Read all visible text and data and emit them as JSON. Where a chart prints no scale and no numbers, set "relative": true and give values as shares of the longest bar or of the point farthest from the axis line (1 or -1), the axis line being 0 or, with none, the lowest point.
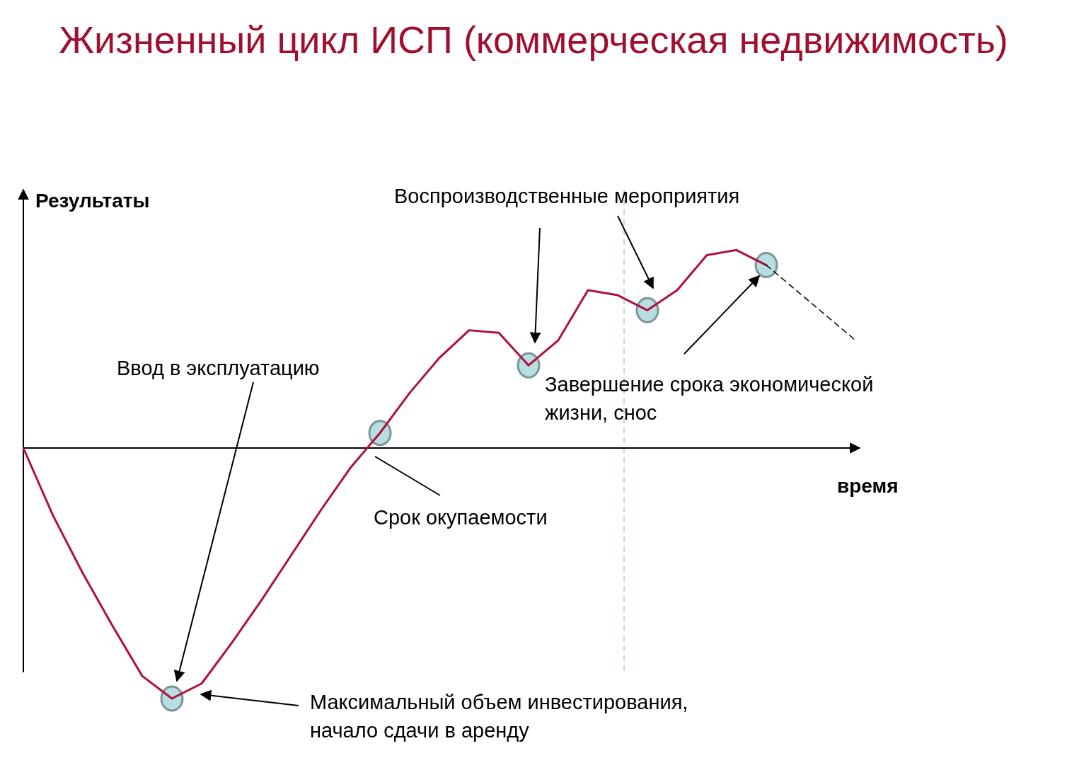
{
  "chart_data": {
    "type": "line",
    "relative": true,
    "title": "Жизненный цикл ИСП (коммерческая недвижимость)",
    "xlabel": "время",
    "ylabel": "Результаты",
    "categories": [
      null,
      null,
      null,
      null,
      null,
      null,
      null,
      null,
      null,
      null,
      null,
      null,
      null,
      null,
      null,
      null,
      null,
      null,
      null,
      null,
      null,
      null,
      null,
      null,
      null,
      null,
      null,
      null,
      null
    ],
    "series": [
      {
        "color": "#b0103a",
        "line_style": "solid",
        "values": [
          0,
          -0.27,
          -0.5,
          -0.71,
          -0.91,
          -1,
          -0.94,
          -0.78,
          -0.61,
          -0.43,
          -0.25,
          -0.08,
          0.06,
          0.22,
          0.36,
          0.47,
          0.46,
          0.33,
          0.43,
          0.63,
          0.61,
          0.55,
          0.63,
          0.77,
          0.79,
          0.73,
          null,
          null,
          null
        ]
      },
      {
        "color": "#000000",
        "line_style": "dashed",
        "values": [
          null,
          null,
          null,
          null,
          null,
          null,
          null,
          null,
          null,
          null,
          null,
          null,
          null,
          null,
          null,
          null,
          null,
          null,
          null,
          null,
          null,
          null,
          null,
          null,
          null,
          0.73,
          0.63,
          0.53,
          0.43
        ]
      }
    ],
    "annotations": [
      "Ввод в эксплуатацию",
      "Максимальный объем инвестирования,\nначало сдачи в аренду",
      "Срок окупаемости",
      "Воспроизводственные мероприятия",
      "Завершение срока экономической\nжизни, снос"
    ]
  }
}
